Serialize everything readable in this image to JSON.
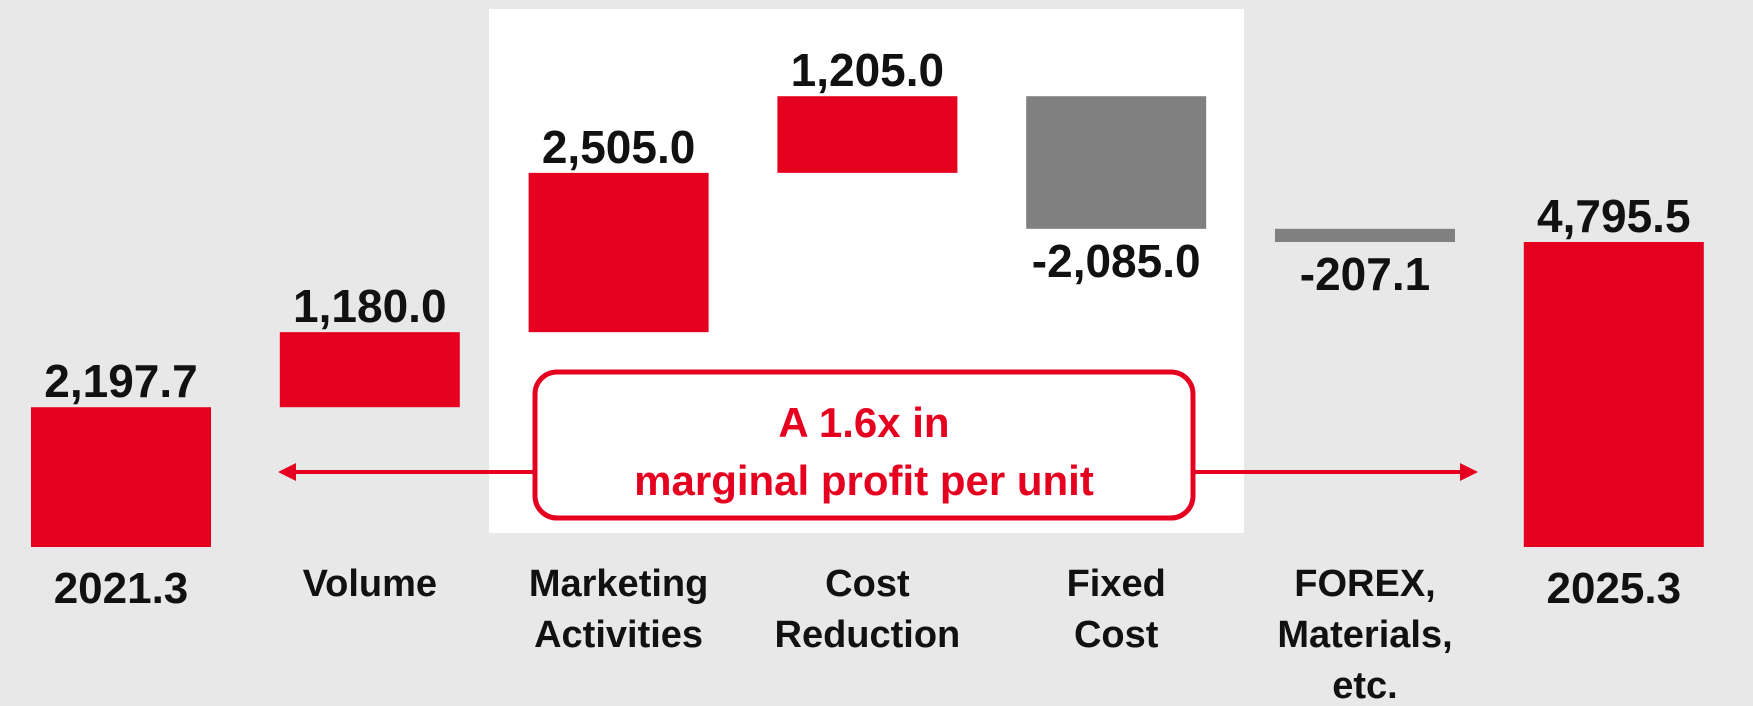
{
  "chart_data": {
    "type": "waterfall",
    "categories": [
      "2021.3",
      "Volume",
      "Marketing\nActivities",
      "Cost\nReduction",
      "Fixed\nCost",
      "FOREX,\nMaterials,\netc.",
      "2025.3"
    ],
    "values": [
      2197.7,
      1180.0,
      2505.0,
      1205.0,
      -2085.0,
      -207.1,
      4795.5
    ],
    "value_labels": [
      "2,197.7",
      "1,180.0",
      "2,505.0",
      "1,205.0",
      "-2,085.0",
      "-207.1",
      "4,795.5"
    ],
    "totals": [
      true,
      false,
      false,
      false,
      false,
      false,
      true
    ],
    "color_positive": "#e60020",
    "color_negative": "#808080",
    "color_total": "#e60020",
    "annotation": [
      "A 1.6x in",
      "marginal profit per unit"
    ],
    "annotation_color": "#e60020"
  }
}
